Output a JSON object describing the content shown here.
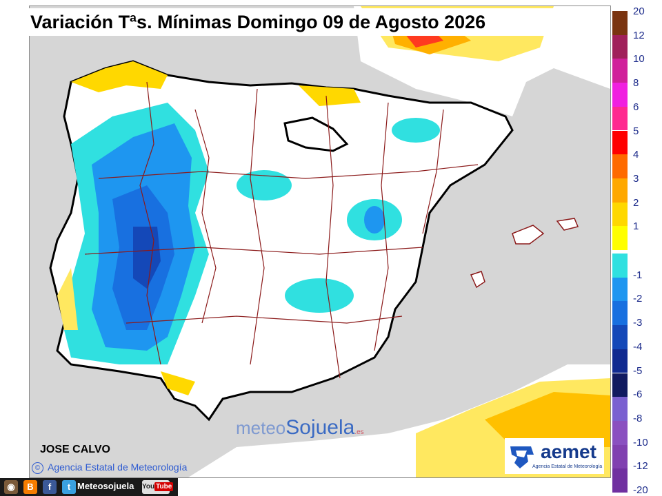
{
  "title": "Variación Tªs. Mínimas Domingo 09 de Agosto 2026",
  "author": "JOSE CALVO",
  "copyright": "Agencia Estatal de Meteorología",
  "watermark": {
    "part1": "meteo",
    "part2": "Sojuela",
    "part3": ".es"
  },
  "aemet": {
    "name": "aemet",
    "subtitle": "Agencia Estatal de Meteorología"
  },
  "social": {
    "name": "Meteosojuela",
    "youtube": "You",
    "youtube2": "Tube"
  },
  "legend": {
    "positive": [
      {
        "label": "20",
        "color": "#7a3410"
      },
      {
        "label": "12",
        "color": "#a0205a"
      },
      {
        "label": "10",
        "color": "#d0209a"
      },
      {
        "label": "8",
        "color": "#f020e0"
      },
      {
        "label": "6",
        "color": "#ff2a90"
      },
      {
        "label": "5",
        "color": "#ff0000"
      },
      {
        "label": "4",
        "color": "#ff6a00"
      },
      {
        "label": "3",
        "color": "#ffa800"
      },
      {
        "label": "2",
        "color": "#ffd800"
      },
      {
        "label": "1",
        "color": "#ffff00"
      }
    ],
    "negative": [
      {
        "label": "-1",
        "color": "#30e0e0"
      },
      {
        "label": "-2",
        "color": "#1e96f0"
      },
      {
        "label": "-3",
        "color": "#1870e0"
      },
      {
        "label": "-4",
        "color": "#1448b8"
      },
      {
        "label": "-5",
        "color": "#102a90"
      },
      {
        "label": "-6",
        "color": "#101a60"
      },
      {
        "label": "-8",
        "color": "#7a60d0"
      },
      {
        "label": "-10",
        "color": "#8a50c0"
      },
      {
        "label": "-12",
        "color": "#8040b0"
      },
      {
        "label": "-20",
        "color": "#7030a0"
      }
    ]
  }
}
